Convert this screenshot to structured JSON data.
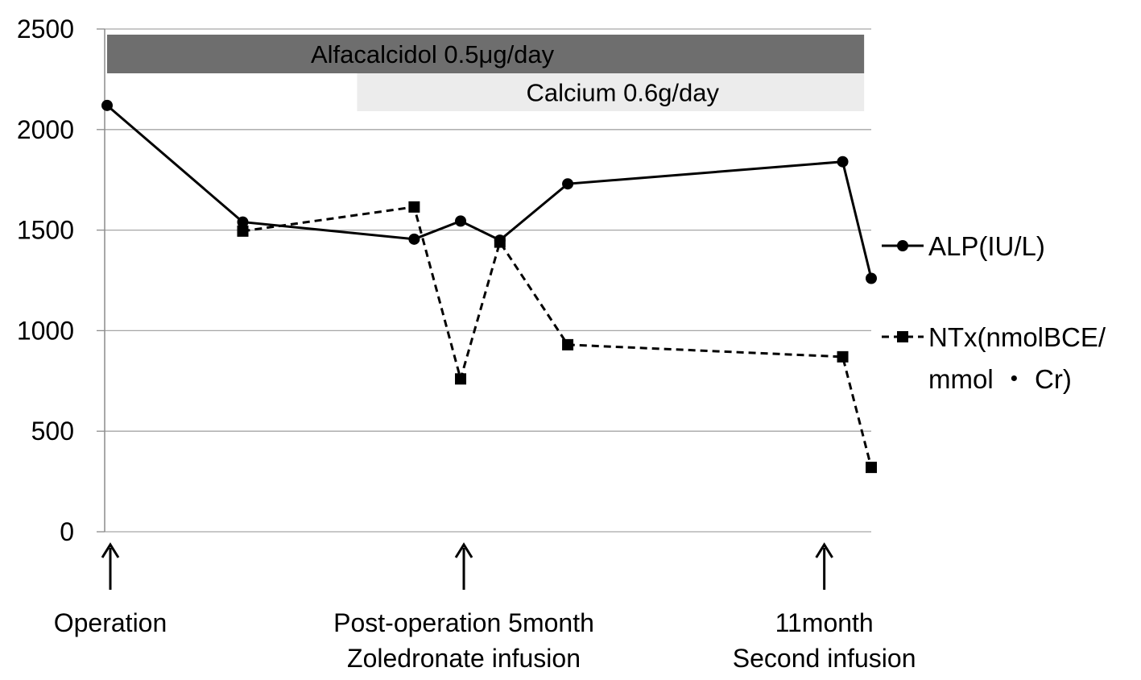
{
  "chart_data": {
    "type": "line",
    "ylim": [
      0,
      2500
    ],
    "yticks": [
      "2500",
      "2000",
      "1500",
      "1000",
      "500",
      "0"
    ],
    "grid": true,
    "legend_position": "right",
    "series": [
      {
        "name": "ALP(IU/L)",
        "line": "solid",
        "marker": "circle",
        "color": "#000000",
        "points": [
          {
            "t": 0.0,
            "y": 2120
          },
          {
            "t": 3.8,
            "y": 1540
          },
          {
            "t": 8.6,
            "y": 1455
          },
          {
            "t": 9.9,
            "y": 1545
          },
          {
            "t": 11.0,
            "y": 1450
          },
          {
            "t": 12.9,
            "y": 1730
          },
          {
            "t": 20.6,
            "y": 1840
          },
          {
            "t": 21.4,
            "y": 1260
          }
        ]
      },
      {
        "name_lines": [
          "NTx(nmolBCE/",
          "mmol ・ Cr)"
        ],
        "line": "dashed",
        "marker": "square",
        "color": "#000000",
        "points": [
          {
            "t": 3.8,
            "y": 1495
          },
          {
            "t": 8.6,
            "y": 1615
          },
          {
            "t": 9.9,
            "y": 760
          },
          {
            "t": 11.0,
            "y": 1440
          },
          {
            "t": 12.9,
            "y": 930
          },
          {
            "t": 20.6,
            "y": 870
          },
          {
            "t": 21.4,
            "y": 320
          }
        ]
      }
    ],
    "treatment_bands": [
      {
        "label": "Alfacalcidol 0.5μg/day",
        "t_start": 0.0,
        "t_end": 21.2,
        "color": "#6e6e6e"
      },
      {
        "label": "Calcium 0.6g/day",
        "t_start": 7.0,
        "t_end": 21.2,
        "color": "#ececec"
      }
    ],
    "events": [
      {
        "t": 0.0,
        "lines": [
          "Operation"
        ]
      },
      {
        "t": 9.9,
        "lines": [
          "Post-operation 5month",
          "Zoledronate infusion"
        ]
      },
      {
        "t": 20.4,
        "lines": [
          "11month",
          "Second infusion"
        ]
      }
    ]
  }
}
